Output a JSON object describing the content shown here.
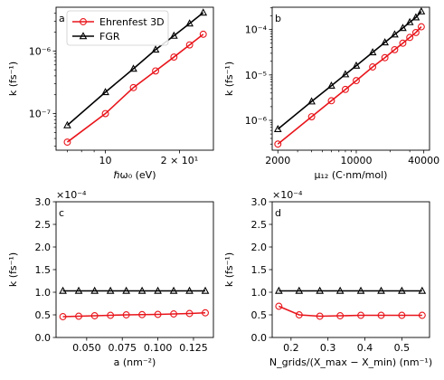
{
  "colors": {
    "ehrenfest": "#e8151b",
    "fgr": "#000000",
    "frame": "#000000"
  },
  "legend": {
    "items": [
      {
        "label": "Ehrenfest 3D",
        "marker": "circle"
      },
      {
        "label": "FGR",
        "marker": "triangle"
      }
    ]
  },
  "chart_data": [
    {
      "type": "line",
      "panel": "a",
      "xlabel": "ℏω₀ (eV)",
      "ylabel": "k (fs⁻¹)",
      "x_scale": "log",
      "y_scale": "log",
      "xlim": [
        6.3,
        27.5
      ],
      "ylim": [
        2.6e-08,
        5e-06
      ],
      "xticks": [
        {
          "value": 10,
          "label": "10"
        },
        {
          "value": 20,
          "label": "2 × 10¹"
        }
      ],
      "yticks": [
        {
          "value": 1e-07,
          "label": "10⁻⁷"
        },
        {
          "value": 1e-06,
          "label": "10⁻⁶"
        }
      ],
      "legend_position": "top-left",
      "series": [
        {
          "name": "Ehrenfest 3D",
          "marker": "circle",
          "x": [
            7,
            10,
            13,
            16,
            19,
            22,
            25
          ],
          "y": [
            3.5e-08,
            1e-07,
            2.6e-07,
            4.8e-07,
            8e-07,
            1.25e-06,
            1.85e-06
          ]
        },
        {
          "name": "FGR",
          "marker": "triangle",
          "x": [
            7,
            10,
            13,
            16,
            19,
            22,
            25
          ],
          "y": [
            6.5e-08,
            2.2e-07,
            5.2e-07,
            1.05e-06,
            1.75e-06,
            2.75e-06,
            4.1e-06
          ]
        }
      ]
    },
    {
      "type": "line",
      "panel": "b",
      "xlabel": "μ₁₂ (C·nm/mol)",
      "ylabel": "k (fs⁻¹)",
      "x_scale": "log",
      "y_scale": "log",
      "xlim": [
        1780,
        45000
      ],
      "ylim": [
        2.2e-07,
        0.00031
      ],
      "xticks": [
        {
          "value": 2000,
          "label": "2000"
        },
        {
          "value": 10000,
          "label": "10000"
        },
        {
          "value": 40000,
          "label": "40000"
        }
      ],
      "yticks": [
        {
          "value": 1e-06,
          "label": "10⁻⁶"
        },
        {
          "value": 1e-05,
          "label": "10⁻⁵"
        },
        {
          "value": 0.0001,
          "label": "10⁻⁴"
        }
      ],
      "series": [
        {
          "name": "Ehrenfest 3D",
          "marker": "circle",
          "x": [
            2000,
            4000,
            6000,
            8000,
            10000,
            14000,
            18000,
            22000,
            26000,
            30000,
            34000,
            38000
          ],
          "y": [
            3e-07,
            1.2e-06,
            2.7e-06,
            4.8e-06,
            7.5e-06,
            1.5e-05,
            2.4e-05,
            3.6e-05,
            5e-05,
            6.7e-05,
            8.6e-05,
            0.000115
          ]
        },
        {
          "name": "FGR",
          "marker": "triangle",
          "x": [
            2000,
            4000,
            6000,
            8000,
            10000,
            14000,
            18000,
            22000,
            26000,
            30000,
            34000,
            38000
          ],
          "y": [
            6.4e-07,
            2.6e-06,
            5.8e-06,
            1.03e-05,
            1.6e-05,
            3.15e-05,
            5.2e-05,
            7.8e-05,
            0.000108,
            0.000145,
            0.000185,
            0.00025
          ]
        }
      ]
    },
    {
      "type": "line",
      "panel": "c",
      "xlabel": "a (nm⁻²)",
      "ylabel": "k (fs⁻¹)",
      "x_scale": "linear",
      "y_scale": "linear",
      "xlim": [
        0.0285,
        0.139
      ],
      "ylim": [
        0,
        3.0
      ],
      "y_multiplier": "×10⁻⁴",
      "xticks": [
        {
          "value": 0.05,
          "label": "0.050"
        },
        {
          "value": 0.075,
          "label": "0.075"
        },
        {
          "value": 0.1,
          "label": "0.100"
        },
        {
          "value": 0.125,
          "label": "0.125"
        }
      ],
      "yticks": [
        {
          "value": 0,
          "label": "0.0"
        },
        {
          "value": 0.5,
          "label": "0.5"
        },
        {
          "value": 1.0,
          "label": "1.0"
        },
        {
          "value": 1.5,
          "label": "1.5"
        },
        {
          "value": 2.0,
          "label": "2.0"
        },
        {
          "value": 2.5,
          "label": "2.5"
        },
        {
          "value": 3.0,
          "label": "3.0"
        }
      ],
      "series": [
        {
          "name": "Ehrenfest 3D",
          "marker": "circle",
          "x": [
            0.0333,
            0.0444,
            0.0556,
            0.0667,
            0.0778,
            0.0889,
            0.1,
            0.1111,
            0.1222,
            0.1333
          ],
          "y": [
            0.46,
            0.47,
            0.48,
            0.49,
            0.5,
            0.505,
            0.51,
            0.52,
            0.53,
            0.545
          ]
        },
        {
          "name": "FGR",
          "marker": "triangle",
          "x": [
            0.0333,
            0.0444,
            0.0556,
            0.0667,
            0.0778,
            0.0889,
            0.1,
            0.1111,
            0.1222,
            0.1333
          ],
          "y": [
            1.03,
            1.03,
            1.03,
            1.03,
            1.03,
            1.03,
            1.03,
            1.03,
            1.03,
            1.03
          ]
        }
      ]
    },
    {
      "type": "line",
      "panel": "d",
      "xlabel": "N_grids/(X_max − X_min) (nm⁻¹)",
      "ylabel": "k (fs⁻¹)",
      "x_scale": "linear",
      "y_scale": "linear",
      "xlim": [
        0.149,
        0.575
      ],
      "ylim": [
        0,
        3.0
      ],
      "y_multiplier": "×10⁻⁴",
      "xticks": [
        {
          "value": 0.2,
          "label": "0.2"
        },
        {
          "value": 0.3,
          "label": "0.3"
        },
        {
          "value": 0.4,
          "label": "0.4"
        },
        {
          "value": 0.5,
          "label": "0.5"
        }
      ],
      "yticks": [
        {
          "value": 0,
          "label": "0.0"
        },
        {
          "value": 0.5,
          "label": "0.5"
        },
        {
          "value": 1.0,
          "label": "1.0"
        },
        {
          "value": 1.5,
          "label": "1.5"
        },
        {
          "value": 2.0,
          "label": "2.0"
        },
        {
          "value": 2.5,
          "label": "2.5"
        },
        {
          "value": 3.0,
          "label": "3.0"
        }
      ],
      "series": [
        {
          "name": "Ehrenfest 3D",
          "marker": "circle",
          "x": [
            0.167,
            0.222,
            0.278,
            0.333,
            0.389,
            0.444,
            0.5,
            0.555
          ],
          "y": [
            0.69,
            0.5,
            0.47,
            0.48,
            0.49,
            0.49,
            0.49,
            0.49
          ]
        },
        {
          "name": "FGR",
          "marker": "triangle",
          "x": [
            0.167,
            0.222,
            0.278,
            0.333,
            0.389,
            0.444,
            0.5,
            0.555
          ],
          "y": [
            1.03,
            1.03,
            1.03,
            1.03,
            1.03,
            1.03,
            1.03,
            1.03
          ]
        }
      ]
    }
  ]
}
